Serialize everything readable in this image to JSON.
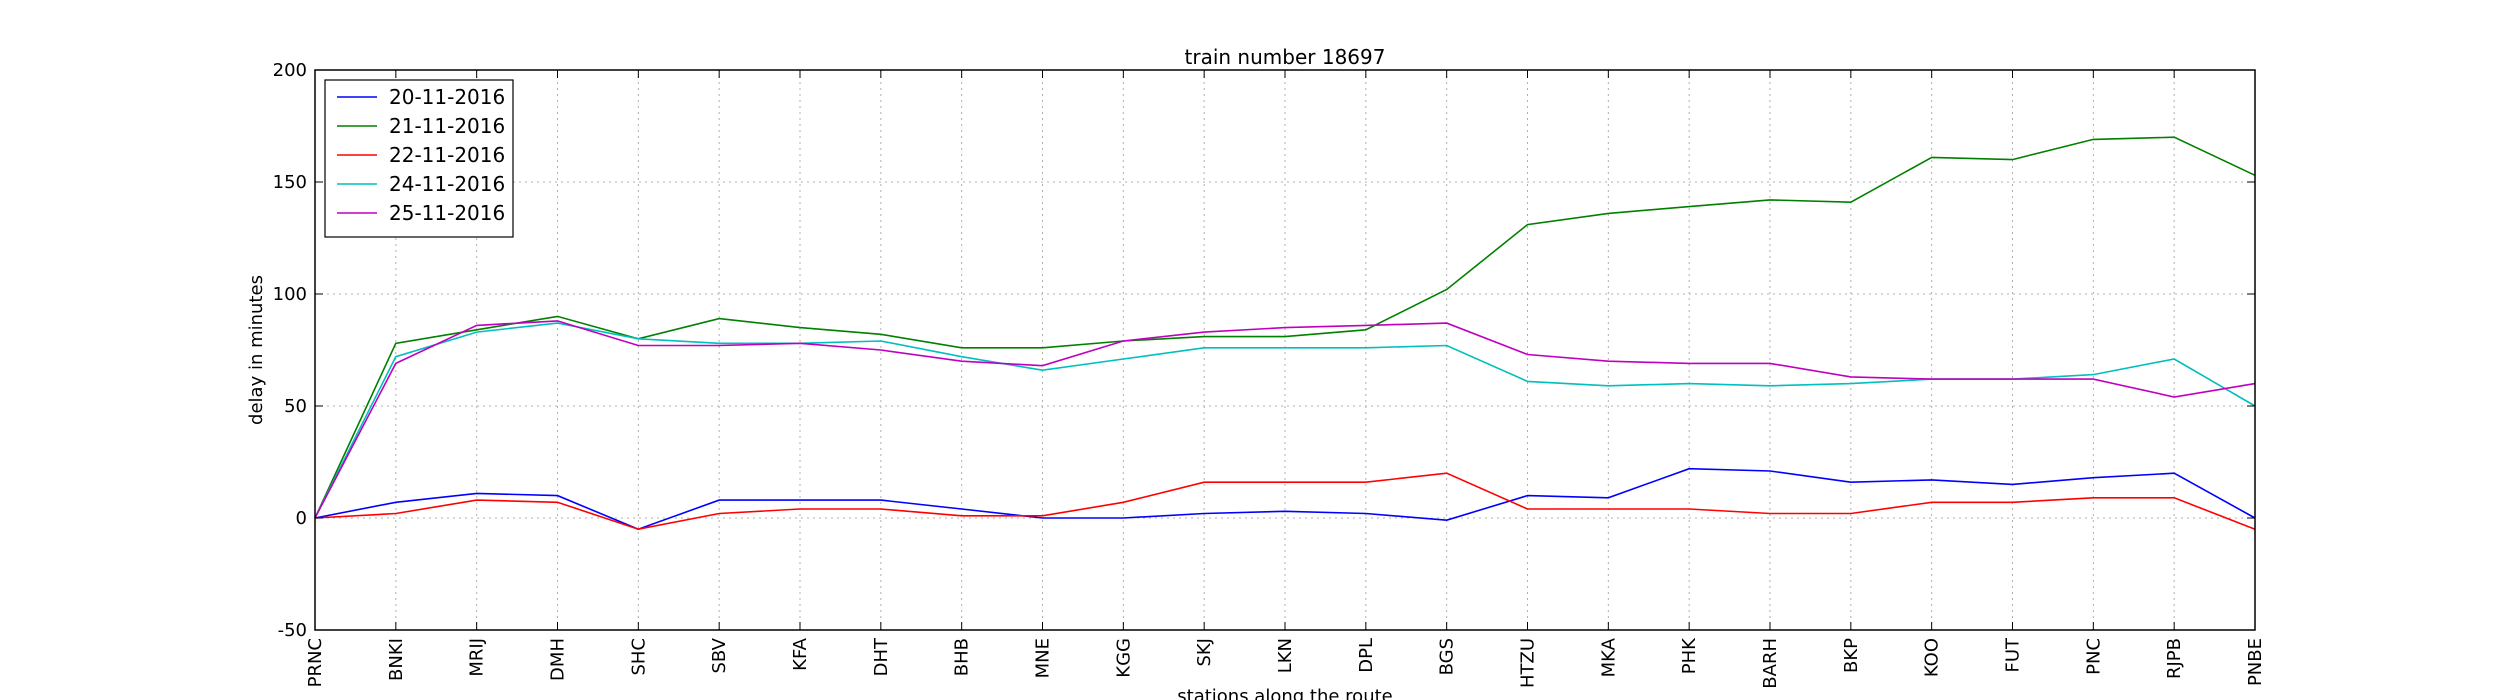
{
  "chart_data": {
    "type": "line",
    "title": "train number 18697",
    "xlabel": "stations along the route",
    "ylabel": "delay in minutes",
    "ylim": [
      -50,
      200
    ],
    "yticks": [
      -50,
      0,
      50,
      100,
      150,
      200
    ],
    "grid": true,
    "legend_position": "top-left",
    "categories": [
      "PRNC",
      "BNKI",
      "MRIJ",
      "DMH",
      "SHC",
      "SBV",
      "KFA",
      "DHT",
      "BHB",
      "MNE",
      "KGG",
      "SKJ",
      "LKN",
      "DPL",
      "BGS",
      "HTZU",
      "MKA",
      "PHK",
      "BARH",
      "BKP",
      "KOO",
      "FUT",
      "PNC",
      "RJPB",
      "PNBE"
    ],
    "series": [
      {
        "name": "20-11-2016",
        "color": "#0000ff",
        "values": [
          0,
          7,
          11,
          10,
          -5,
          8,
          8,
          8,
          4,
          0,
          0,
          2,
          3,
          2,
          -1,
          10,
          9,
          22,
          21,
          16,
          17,
          15,
          18,
          20,
          0
        ]
      },
      {
        "name": "21-11-2016",
        "color": "#008000",
        "values": [
          0,
          78,
          84,
          90,
          80,
          89,
          85,
          82,
          76,
          76,
          79,
          81,
          81,
          84,
          102,
          131,
          136,
          139,
          142,
          141,
          161,
          160,
          169,
          170,
          153
        ]
      },
      {
        "name": "22-11-2016",
        "color": "#ff0000",
        "values": [
          0,
          2,
          8,
          7,
          -5,
          2,
          4,
          4,
          1,
          1,
          7,
          16,
          16,
          16,
          20,
          4,
          4,
          4,
          2,
          2,
          7,
          7,
          9,
          9,
          -5
        ]
      },
      {
        "name": "24-11-2016",
        "color": "#00bfbf",
        "values": [
          0,
          72,
          83,
          87,
          80,
          78,
          78,
          79,
          72,
          66,
          71,
          76,
          76,
          76,
          77,
          61,
          59,
          60,
          59,
          60,
          62,
          62,
          64,
          71,
          50
        ]
      },
      {
        "name": "25-11-2016",
        "color": "#bf00bf",
        "values": [
          0,
          69,
          86,
          88,
          77,
          77,
          78,
          75,
          70,
          68,
          79,
          83,
          85,
          86,
          87,
          73,
          70,
          69,
          69,
          63,
          62,
          62,
          62,
          54,
          60
        ]
      }
    ]
  }
}
